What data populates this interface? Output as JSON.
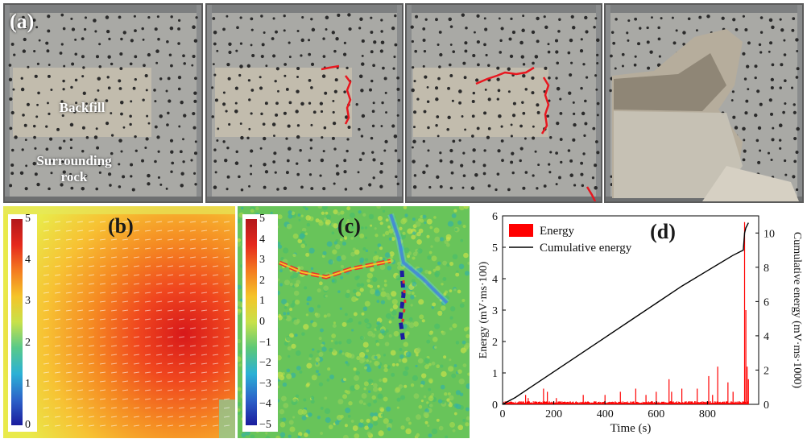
{
  "panel_a": {
    "letter": "(a)",
    "backfill_label": "Backfill",
    "rock_label_line1": "Surrounding",
    "rock_label_line2": "rock"
  },
  "panel_b": {
    "letter": "(b)",
    "colorbar_ticks": [
      "5",
      "4",
      "3",
      "2",
      "1",
      "0"
    ]
  },
  "panel_c": {
    "letter": "(c)",
    "colorbar_ticks": [
      "5",
      "4",
      "3",
      "2",
      "1",
      "0",
      "−1",
      "−2",
      "−3",
      "−4",
      "−5"
    ]
  },
  "colors": {
    "energy": "#ff0000",
    "cumulative": "#000000",
    "crack": "#e8171f"
  },
  "chart_data": {
    "type": "bar+line",
    "panel_letter": "(d)",
    "xlabel": "Time (s)",
    "ylabel_left": "Energy (mV·ms·100)",
    "ylabel_right": "Cumulative energy (mV·ms·1000)",
    "xlim": [
      0,
      1000
    ],
    "ylim_left": [
      0,
      6
    ],
    "ylim_right": [
      0,
      11
    ],
    "x_ticks": [
      "0",
      "200",
      "400",
      "600",
      "800"
    ],
    "x_tick_values": [
      0,
      200,
      400,
      600,
      800
    ],
    "y_left_ticks": [
      "0",
      "1",
      "2",
      "3",
      "4",
      "5",
      "6"
    ],
    "y_left_tick_values": [
      0,
      1,
      2,
      3,
      4,
      5,
      6
    ],
    "y_right_ticks": [
      "0",
      "2",
      "4",
      "6",
      "8",
      "10"
    ],
    "y_right_tick_values": [
      0,
      2,
      4,
      6,
      8,
      10
    ],
    "legend": [
      "Energy",
      "Cumulative energy"
    ],
    "energy_series": {
      "name": "Energy",
      "x": [
        90,
        100,
        160,
        175,
        210,
        315,
        400,
        460,
        520,
        560,
        600,
        650,
        660,
        700,
        760,
        805,
        820,
        840,
        880,
        900,
        945,
        950,
        955,
        960
      ],
      "values": [
        0.3,
        0.2,
        0.5,
        0.4,
        0.2,
        0.3,
        0.3,
        0.4,
        0.5,
        0.3,
        0.4,
        0.8,
        0.4,
        0.5,
        0.5,
        0.9,
        0.3,
        1.2,
        0.7,
        0.4,
        5.8,
        3.0,
        1.2,
        0.8
      ]
    },
    "cumulative_series": {
      "name": "Cumulative energy",
      "x": [
        0,
        50,
        100,
        200,
        300,
        400,
        500,
        600,
        700,
        800,
        900,
        940,
        945,
        950,
        960
      ],
      "values": [
        0.0,
        0.4,
        0.9,
        1.9,
        2.9,
        3.9,
        4.9,
        5.9,
        6.9,
        7.8,
        8.7,
        9.0,
        10.0,
        10.3,
        10.6
      ]
    }
  }
}
